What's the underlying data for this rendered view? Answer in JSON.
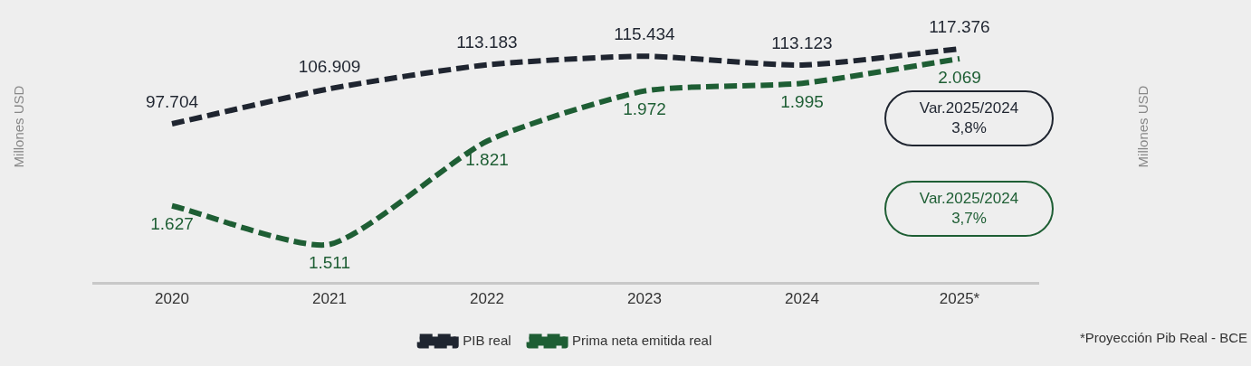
{
  "chart_data": {
    "type": "line",
    "categories": [
      "2020",
      "2021",
      "2022",
      "2023",
      "2024",
      "2025*"
    ],
    "series": [
      {
        "name": "PIB real",
        "color": "#1f2530",
        "values": [
          97704,
          106909,
          113183,
          115434,
          113123,
          117376
        ],
        "value_labels": [
          "97.704",
          "106.909",
          "113.183",
          "115.434",
          "113.123",
          "117.376"
        ]
      },
      {
        "name": "Prima neta emitida real",
        "color": "#1e5e34",
        "axis": "y2",
        "values": [
          1627,
          1511,
          1821,
          1972,
          1995,
          2069
        ],
        "value_labels": [
          "1.627",
          "1.511",
          "1.821",
          "1.972",
          "1.995",
          "2.069"
        ]
      }
    ],
    "line_style": "dashed",
    "marker": "none",
    "grid": false,
    "legend": "bottom",
    "annotations": [
      "Millones USD",
      "Var.2025/2024\n3,8%",
      "Var.2025/2024\n3,7%",
      "Millones USD",
      "*Proyección Pib Real - BCE"
    ]
  }
}
